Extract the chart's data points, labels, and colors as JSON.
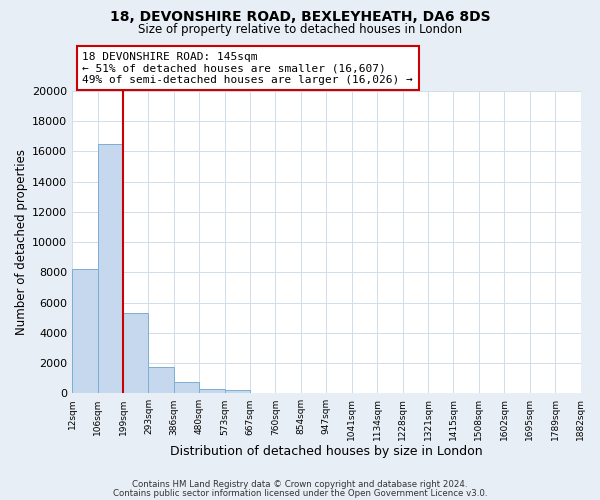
{
  "title": "18, DEVONSHIRE ROAD, BEXLEYHEATH, DA6 8DS",
  "subtitle": "Size of property relative to detached houses in London",
  "xlabel": "Distribution of detached houses by size in London",
  "ylabel": "Number of detached properties",
  "bar_values": [
    8200,
    16500,
    5300,
    1750,
    750,
    300,
    200,
    0,
    0,
    0,
    0,
    0,
    0,
    0,
    0,
    0,
    0,
    0,
    0
  ],
  "bin_labels": [
    "12sqm",
    "106sqm",
    "199sqm",
    "293sqm",
    "386sqm",
    "480sqm",
    "573sqm",
    "667sqm",
    "760sqm",
    "854sqm",
    "947sqm",
    "1041sqm",
    "1134sqm",
    "1228sqm",
    "1321sqm",
    "1415sqm",
    "1508sqm",
    "1602sqm",
    "1695sqm",
    "1789sqm",
    "1882sqm"
  ],
  "bar_color": "#c5d8ee",
  "bar_edge_color": "#7bafd4",
  "vline_color": "#cc0000",
  "vline_x": 2,
  "ylim": [
    0,
    20000
  ],
  "yticks": [
    0,
    2000,
    4000,
    6000,
    8000,
    10000,
    12000,
    14000,
    16000,
    18000,
    20000
  ],
  "grid_color": "#d0dce8",
  "plot_bg_color": "#ffffff",
  "fig_bg_color": "#e8eef5",
  "annotation_line1": "18 DEVONSHIRE ROAD: 145sqm",
  "annotation_line2": "← 51% of detached houses are smaller (16,607)",
  "annotation_line3": "49% of semi-detached houses are larger (16,026) →",
  "annotation_box_facecolor": "#ffffff",
  "annotation_box_edgecolor": "#cc0000",
  "footer_line1": "Contains HM Land Registry data © Crown copyright and database right 2024.",
  "footer_line2": "Contains public sector information licensed under the Open Government Licence v3.0."
}
